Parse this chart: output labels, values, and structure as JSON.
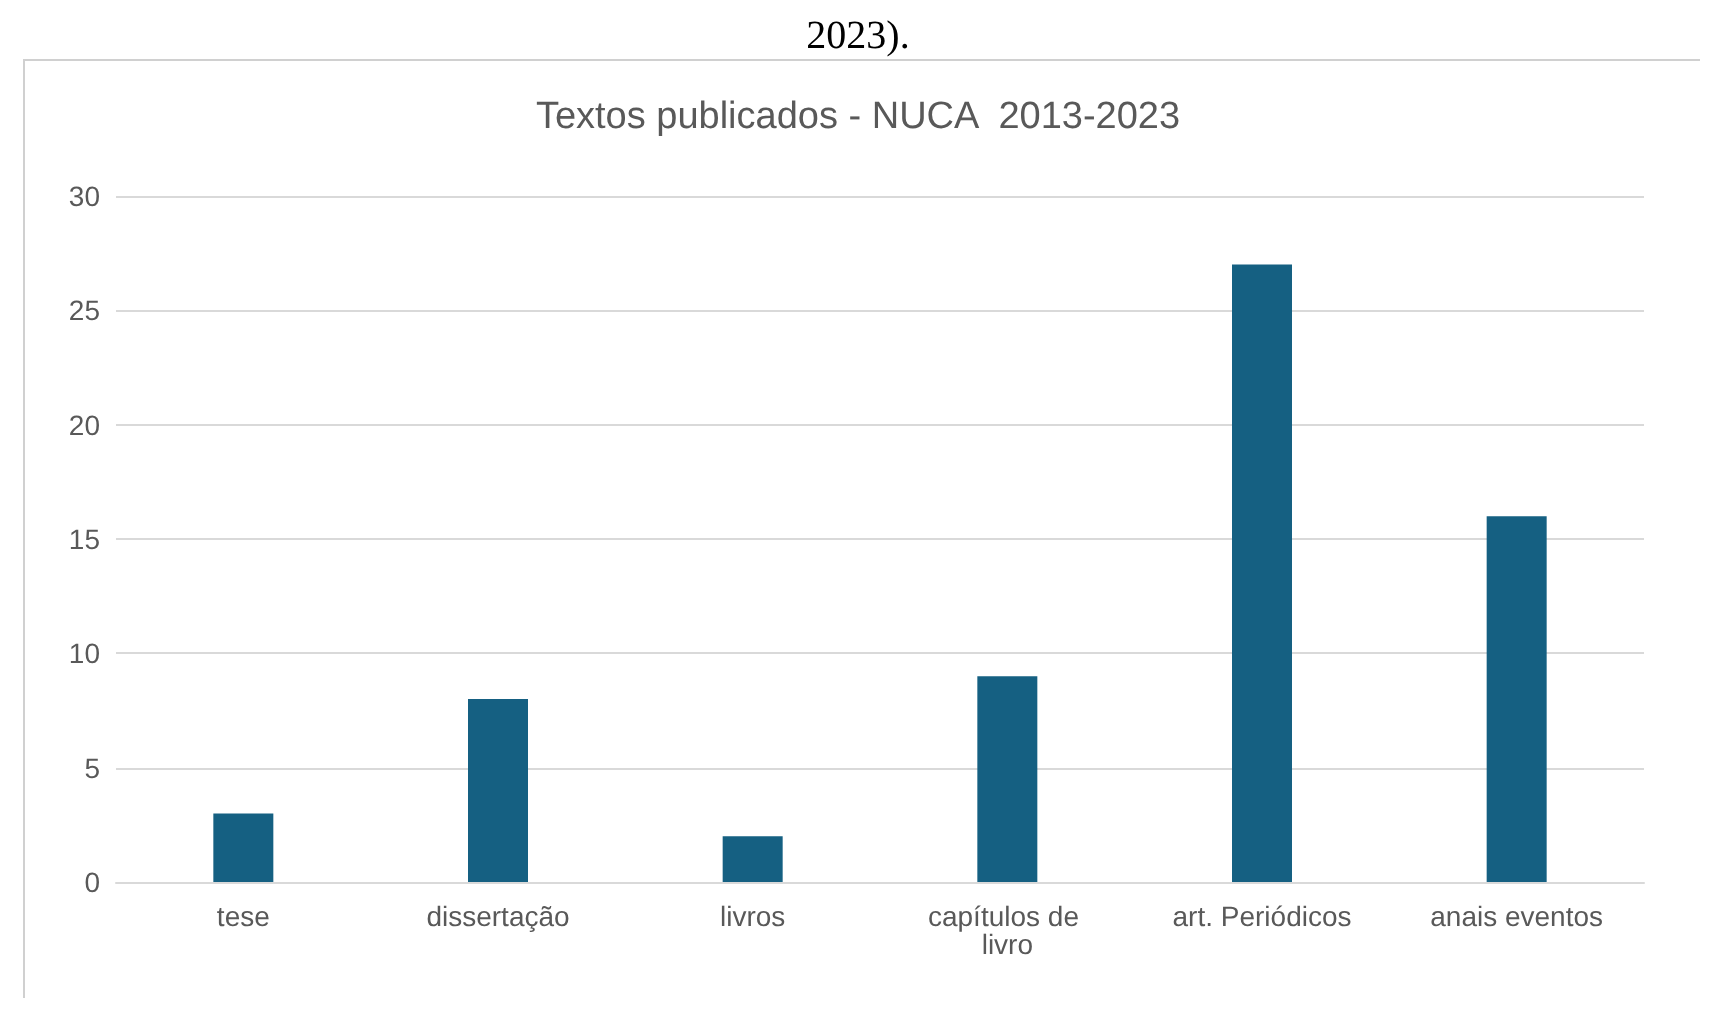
{
  "chart_data": {
    "type": "bar",
    "title": "Textos publicados - NUCA  2013-2023",
    "annotations": [
      "2023)."
    ],
    "categories": [
      "tese",
      "dissertação",
      "livros",
      "capítulos de livro",
      "art. Periódicos",
      "anais eventos"
    ],
    "values": [
      3,
      8,
      2,
      9,
      27,
      16
    ],
    "color": "#156082",
    "ylim": [
      0,
      30
    ],
    "yticks": [
      0,
      5,
      10,
      15,
      20,
      25,
      30
    ],
    "grid": "y"
  }
}
